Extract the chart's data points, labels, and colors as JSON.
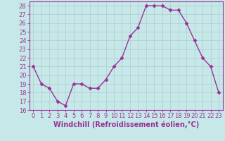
{
  "x": [
    0,
    1,
    2,
    3,
    4,
    5,
    6,
    7,
    8,
    9,
    10,
    11,
    12,
    13,
    14,
    15,
    16,
    17,
    18,
    19,
    20,
    21,
    22,
    23
  ],
  "y": [
    21,
    19,
    18.5,
    17,
    16.5,
    19,
    19,
    18.5,
    18.5,
    19.5,
    21,
    22,
    24.5,
    25.5,
    28,
    28,
    28,
    27.5,
    27.5,
    26,
    24,
    22,
    21,
    18
  ],
  "line_color": "#993399",
  "marker": "D",
  "marker_size": 2.5,
  "background_color": "#c6e8e8",
  "grid_color": "#b0cccc",
  "xlabel": "Windchill (Refroidissement éolien,°C)",
  "xlabel_fontsize": 7,
  "ylim": [
    16,
    28.5
  ],
  "xlim": [
    -0.5,
    23.5
  ],
  "yticks": [
    16,
    17,
    18,
    19,
    20,
    21,
    22,
    23,
    24,
    25,
    26,
    27,
    28
  ],
  "xticks": [
    0,
    1,
    2,
    3,
    4,
    5,
    6,
    7,
    8,
    9,
    10,
    11,
    12,
    13,
    14,
    15,
    16,
    17,
    18,
    19,
    20,
    21,
    22,
    23
  ],
  "tick_fontsize": 6,
  "line_width": 1.0
}
